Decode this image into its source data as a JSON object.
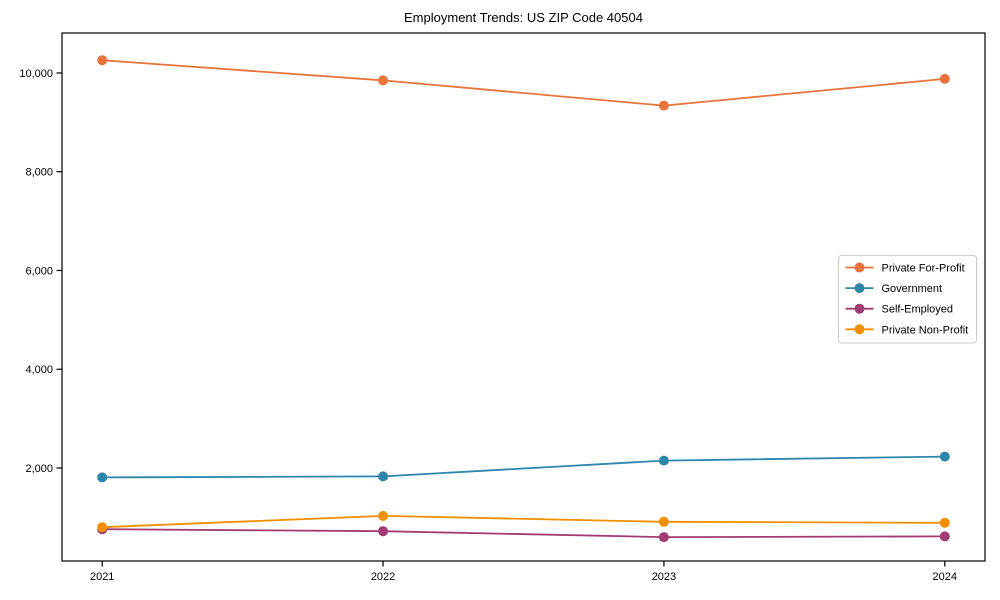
{
  "chart_data": {
    "type": "line",
    "title": "Employment Trends: US ZIP Code 40504",
    "xlabel": "",
    "ylabel": "",
    "x_labels": [
      "2021",
      "2022",
      "2023",
      "2024"
    ],
    "yticks": {
      "values": [
        2000,
        4000,
        6000,
        8000,
        10000
      ],
      "labels": [
        "2,000",
        "4,000",
        "6,000",
        "8,000",
        "10,000"
      ]
    },
    "ylim": [
      116,
      10810
    ],
    "grid": false,
    "legend_position": "right",
    "series": [
      {
        "name": "Private For-Profit",
        "color": "#E8743B",
        "values": [
          10260,
          9850,
          9340,
          9880
        ]
      },
      {
        "name": "Government",
        "color": "#2E86AB",
        "values": [
          1810,
          1830,
          2150,
          2230
        ]
      },
      {
        "name": "Self-Employed",
        "color": "#A23B72",
        "values": [
          760,
          720,
          600,
          615
        ]
      },
      {
        "name": "Private Non-Profit",
        "color": "#F18F01",
        "values": [
          800,
          1030,
          910,
          890
        ]
      }
    ],
    "axis_color": "#000000",
    "legend_border_color": "#cccccc",
    "legend_bg_color": "#ffffff"
  }
}
